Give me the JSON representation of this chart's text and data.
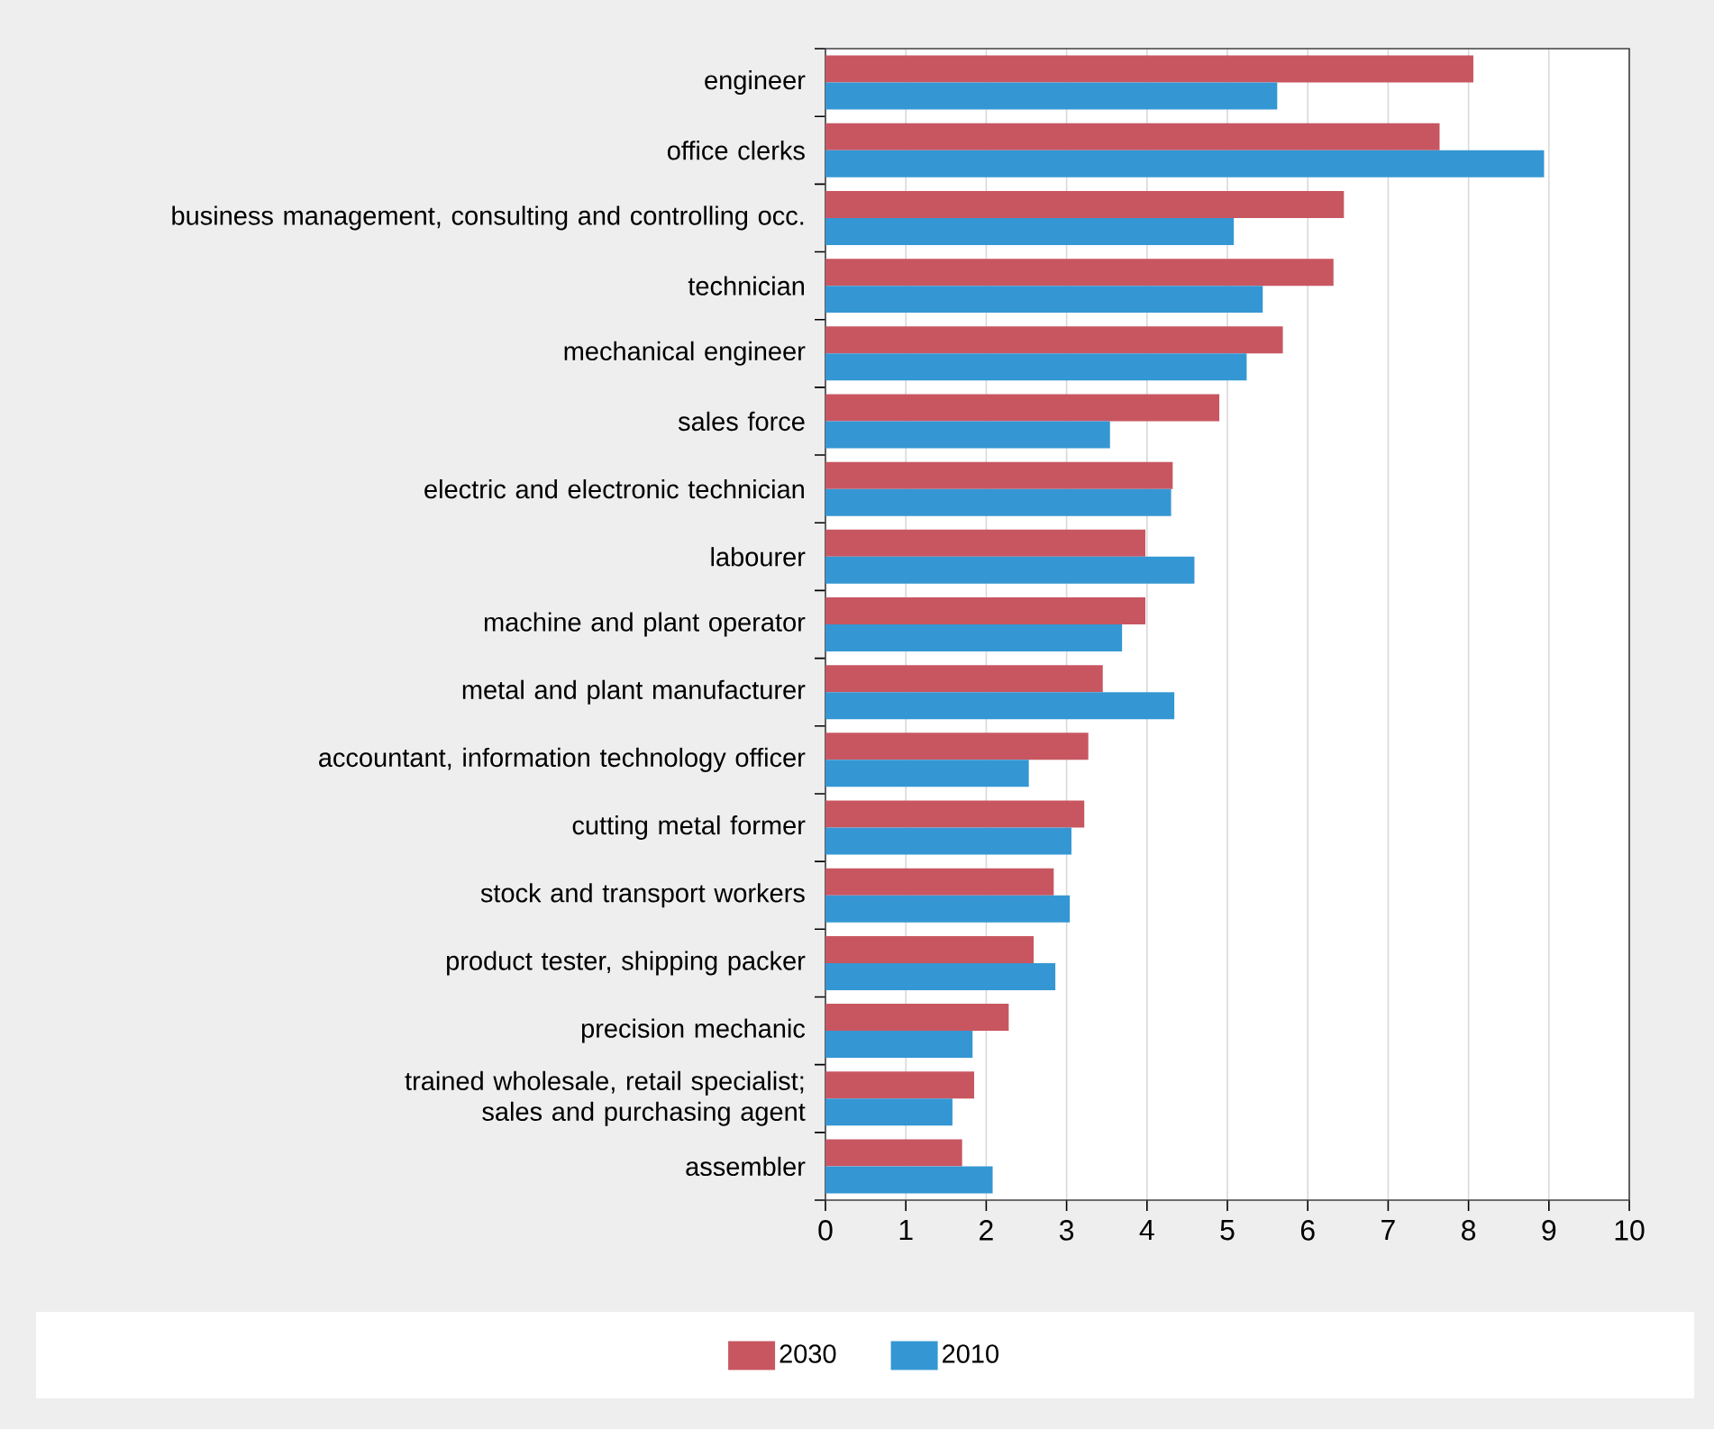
{
  "chart_data": {
    "type": "bar",
    "orientation": "horizontal",
    "categories": [
      "engineer",
      "office clerks",
      "business management, consulting and controlling occ.",
      "technician",
      "mechanical engineer",
      "sales force",
      "electric and electronic technician",
      "labourer",
      "machine and plant operator",
      "metal and plant manufacturer",
      "accountant, information technology officer",
      "cutting metal former",
      "stock and transport workers",
      "product tester, shipping packer",
      "precision mechanic",
      "trained wholesale, retail specialist; sales and purchasing agent",
      "assembler"
    ],
    "series": [
      {
        "name": "2030",
        "color": "#c85661",
        "values": [
          8.06,
          7.64,
          6.45,
          6.32,
          5.69,
          4.9,
          4.32,
          3.98,
          3.98,
          3.45,
          3.27,
          3.22,
          2.84,
          2.59,
          2.28,
          1.85,
          1.7
        ]
      },
      {
        "name": "2010",
        "color": "#3497d3",
        "values": [
          5.62,
          8.94,
          5.08,
          5.44,
          5.24,
          3.54,
          4.3,
          4.59,
          3.69,
          4.34,
          2.53,
          3.06,
          3.04,
          2.86,
          1.83,
          1.58,
          2.08
        ]
      }
    ],
    "xlim": [
      0,
      10
    ],
    "xticks": [
      0,
      1,
      2,
      3,
      4,
      5,
      6,
      7,
      8,
      9,
      10
    ],
    "grid": "x",
    "legend": "bottom"
  }
}
